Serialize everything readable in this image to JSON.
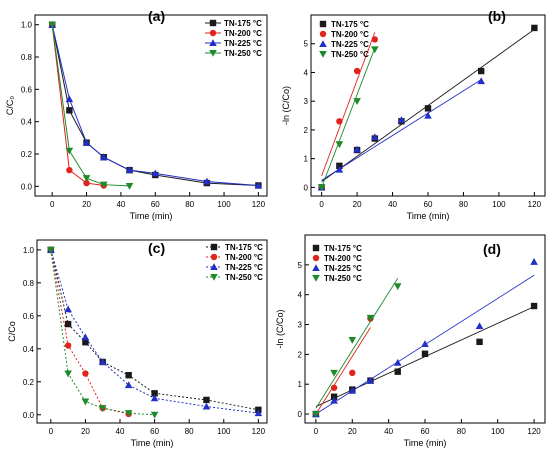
{
  "colors": {
    "TN-175": "#1a1a1a",
    "TN-200": "#e0231c",
    "TN-225": "#2230c8",
    "TN-250": "#1e8a2a"
  },
  "chart_data": [
    {
      "panel": "(a)",
      "type": "line",
      "xlabel": "Time (min)",
      "ylabel": "C/C₀",
      "xlim": [
        -10,
        125
      ],
      "ylim": [
        -0.06,
        1.06
      ],
      "xticks": [
        0,
        20,
        40,
        60,
        80,
        100,
        120
      ],
      "yticks": [
        0.0,
        0.2,
        0.4,
        0.6,
        0.8,
        1.0
      ],
      "ytick_labels": [
        "0.0",
        "0.2",
        "0.4",
        "0.6",
        "0.8",
        "1.0"
      ],
      "line_style": "solid",
      "legend_position": "top-right",
      "series": [
        {
          "name": "TN-175 °C",
          "key": "TN-175",
          "marker": "square",
          "x": [
            0,
            10,
            20,
            30,
            45,
            60,
            90,
            120
          ],
          "y": [
            1.0,
            0.47,
            0.27,
            0.18,
            0.1,
            0.07,
            0.02,
            0.005
          ]
        },
        {
          "name": "TN-200 °C",
          "key": "TN-200",
          "marker": "circle",
          "x": [
            0,
            10,
            20,
            30
          ],
          "y": [
            1.0,
            0.1,
            0.02,
            0.005
          ]
        },
        {
          "name": "TN-225 °C",
          "key": "TN-225",
          "marker": "triangle-up",
          "x": [
            0,
            10,
            20,
            30,
            45,
            60,
            90,
            120
          ],
          "y": [
            1.0,
            0.54,
            0.27,
            0.18,
            0.1,
            0.08,
            0.03,
            0.005
          ]
        },
        {
          "name": "TN-250 °C",
          "key": "TN-250",
          "marker": "triangle-down",
          "x": [
            0,
            10,
            20,
            30,
            45
          ],
          "y": [
            1.0,
            0.22,
            0.05,
            0.01,
            0.002
          ]
        }
      ]
    },
    {
      "panel": "(b)",
      "type": "scatter",
      "xlabel": "Time (min)",
      "ylabel": "-ln (C/Co)",
      "xlim": [
        -6,
        126
      ],
      "ylim": [
        -0.3,
        6.0
      ],
      "xticks": [
        0,
        20,
        40,
        60,
        80,
        100,
        120
      ],
      "yticks": [
        0,
        1,
        2,
        3,
        4,
        5
      ],
      "ytick_labels": [
        "0",
        "1",
        "2",
        "3",
        "4",
        "5"
      ],
      "legend_position": "top-left",
      "series": [
        {
          "name": "TN-175 °C",
          "key": "TN-175",
          "marker": "square",
          "x": [
            0,
            10,
            20,
            30,
            45,
            60,
            90,
            120
          ],
          "y": [
            0,
            0.75,
            1.3,
            1.7,
            2.3,
            2.75,
            4.05,
            5.55
          ],
          "fit": [
            [
              0,
              0.2
            ],
            [
              120,
              5.5
            ]
          ]
        },
        {
          "name": "TN-200 °C",
          "key": "TN-200",
          "marker": "circle",
          "x": [
            0,
            10,
            20,
            30
          ],
          "y": [
            0,
            2.3,
            4.05,
            5.15
          ],
          "fit": [
            [
              0,
              0.4
            ],
            [
              30,
              5.4
            ]
          ]
        },
        {
          "name": "TN-225 °C",
          "key": "TN-225",
          "marker": "triangle-up",
          "x": [
            0,
            10,
            20,
            30,
            45,
            60,
            90
          ],
          "y": [
            0,
            0.62,
            1.32,
            1.75,
            2.35,
            2.5,
            3.7
          ],
          "fit": [
            [
              0,
              0.25
            ],
            [
              90,
              3.75
            ]
          ]
        },
        {
          "name": "TN-250 °C",
          "key": "TN-250",
          "marker": "triangle-down",
          "x": [
            0,
            10,
            20,
            30
          ],
          "y": [
            0,
            1.5,
            3.0,
            4.8
          ],
          "fit": [
            [
              0,
              0.0
            ],
            [
              30,
              4.85
            ]
          ]
        }
      ]
    },
    {
      "panel": "(c)",
      "type": "line",
      "xlabel": "Time (min)",
      "ylabel": "C/Co",
      "xlim": [
        -8,
        125
      ],
      "ylim": [
        -0.05,
        1.06
      ],
      "xticks": [
        0,
        20,
        40,
        60,
        80,
        100,
        120
      ],
      "yticks": [
        0.0,
        0.2,
        0.4,
        0.6,
        0.8,
        1.0
      ],
      "ytick_labels": [
        "0.0",
        "0.2",
        "0.4",
        "0.6",
        "0.8",
        "1.0"
      ],
      "line_style": "dashed",
      "legend_position": "top-right",
      "series": [
        {
          "name": "TN-175 °C",
          "key": "TN-175",
          "marker": "square",
          "x": [
            0,
            10,
            20,
            30,
            45,
            60,
            90,
            120
          ],
          "y": [
            1.0,
            0.55,
            0.44,
            0.32,
            0.24,
            0.13,
            0.09,
            0.03
          ]
        },
        {
          "name": "TN-200 °C",
          "key": "TN-200",
          "marker": "circle",
          "x": [
            0,
            10,
            20,
            30,
            45
          ],
          "y": [
            1.0,
            0.42,
            0.25,
            0.04,
            0.005
          ]
        },
        {
          "name": "TN-225 °C",
          "key": "TN-225",
          "marker": "triangle-up",
          "x": [
            0,
            10,
            20,
            30,
            45,
            60,
            90,
            120
          ],
          "y": [
            1.0,
            0.64,
            0.47,
            0.32,
            0.18,
            0.1,
            0.05,
            0.01
          ]
        },
        {
          "name": "TN-250 °C",
          "key": "TN-250",
          "marker": "triangle-down",
          "x": [
            0,
            10,
            20,
            30,
            45,
            60
          ],
          "y": [
            1.0,
            0.25,
            0.08,
            0.04,
            0.01,
            0.0
          ]
        }
      ]
    },
    {
      "panel": "(d)",
      "type": "scatter",
      "xlabel": "Time (min)",
      "ylabel": "-ln (C/Co)",
      "xlim": [
        -6,
        126
      ],
      "ylim": [
        -0.3,
        6.0
      ],
      "xticks": [
        0,
        20,
        40,
        60,
        80,
        100,
        120
      ],
      "yticks": [
        0,
        1,
        2,
        3,
        4,
        5
      ],
      "ytick_labels": [
        "0",
        "1",
        "2",
        "3",
        "4",
        "5"
      ],
      "legend_position": "top-left",
      "series": [
        {
          "name": "TN-175 °C",
          "key": "TN-175",
          "marker": "square",
          "x": [
            0,
            10,
            20,
            30,
            45,
            60,
            90,
            120
          ],
          "y": [
            0,
            0.58,
            0.82,
            1.12,
            1.42,
            2.02,
            2.42,
            3.62
          ],
          "fit": [
            [
              0,
              0.25
            ],
            [
              120,
              3.6
            ]
          ]
        },
        {
          "name": "TN-200 °C",
          "key": "TN-200",
          "marker": "circle",
          "x": [
            0,
            10,
            20,
            30
          ],
          "y": [
            0,
            0.88,
            1.38,
            3.2
          ],
          "fit": [
            [
              0,
              0.0
            ],
            [
              30,
              2.9
            ]
          ]
        },
        {
          "name": "TN-225 °C",
          "key": "TN-225",
          "marker": "triangle-up",
          "x": [
            0,
            10,
            20,
            30,
            45,
            60,
            90,
            120
          ],
          "y": [
            0,
            0.45,
            0.78,
            1.12,
            1.72,
            2.35,
            2.95,
            5.1
          ],
          "fit": [
            [
              0,
              0.0
            ],
            [
              120,
              4.65
            ]
          ]
        },
        {
          "name": "TN-250 °C",
          "key": "TN-250",
          "marker": "triangle-down",
          "x": [
            0,
            10,
            20,
            30,
            45
          ],
          "y": [
            0,
            1.38,
            2.48,
            3.22,
            4.28
          ],
          "fit": [
            [
              0,
              0.2
            ],
            [
              45,
              4.55
            ]
          ]
        }
      ]
    }
  ]
}
